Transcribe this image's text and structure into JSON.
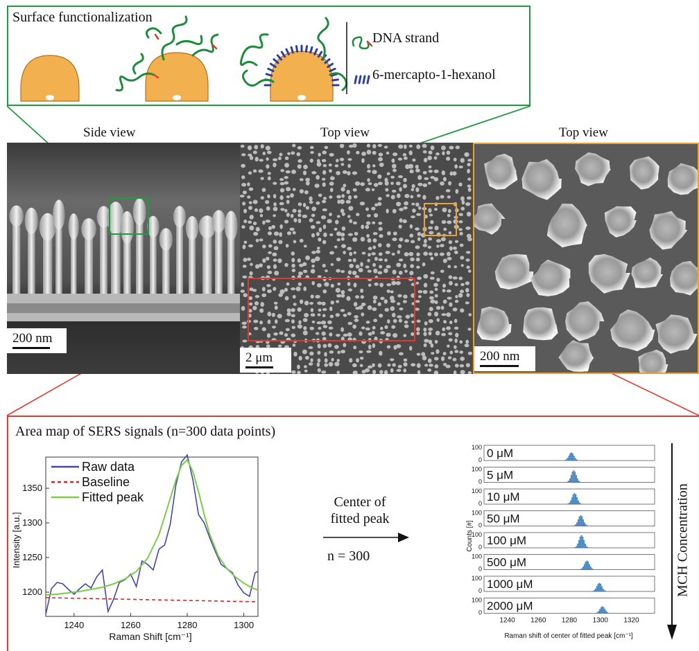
{
  "colors": {
    "green_frame": "#1f9a3f",
    "orange_frame": "#f0a030",
    "red_frame": "#e03a30",
    "gold_particle": "#f3b04e",
    "dna_green": "#1d8a3c",
    "mch_blue": "#2b3f9c",
    "raw_line": "#4444aa",
    "baseline": "#dd2222",
    "fit": "#7acc44",
    "hist_bar": "#5b9bd5"
  },
  "surface": {
    "title": "Surface functionalization",
    "legend_dna": "DNA strand",
    "legend_mch": "6-mercapto-1-hexanol",
    "legend_dna_icon": "dna-strand-icon",
    "legend_mch_icon": "mch-molecule-icon"
  },
  "panels": {
    "side_title": "Side view",
    "top_title": "Top view",
    "zoom_title": "Top view",
    "side_scale": "200 nm",
    "top_scale": "2 μm",
    "zoom_scale": "200 nm"
  },
  "sers": {
    "title": "Area map of SERS signals (n=300 data points)"
  },
  "arrow": {
    "line1": "Center of",
    "line2": "fitted peak",
    "n_label": "n = 300"
  },
  "mch_axis_label": "MCH Concentration",
  "chart_data": [
    {
      "type": "line",
      "xlabel": "Raman Shift [cm⁻¹]",
      "ylabel": "Intensity [a.u.]",
      "xlim": [
        1230,
        1305
      ],
      "ylim": [
        1165,
        1395
      ],
      "xticks": [
        1240,
        1260,
        1280,
        1300
      ],
      "yticks": [
        1200,
        1250,
        1300,
        1350
      ],
      "legend": [
        "Raw data",
        "Baseline",
        "Fitted peak"
      ],
      "legend_position": "top-left",
      "series": [
        {
          "name": "Raw data",
          "x": [
            1230,
            1232,
            1234,
            1236,
            1238,
            1240,
            1242,
            1244,
            1246,
            1248,
            1250,
            1252,
            1254,
            1256,
            1258,
            1260,
            1262,
            1264,
            1266,
            1268,
            1270,
            1272,
            1274,
            1276,
            1278,
            1280,
            1282,
            1284,
            1286,
            1288,
            1290,
            1292,
            1294,
            1296,
            1298,
            1300,
            1302,
            1304,
            1305
          ],
          "y": [
            1168,
            1205,
            1214,
            1212,
            1204,
            1197,
            1205,
            1212,
            1206,
            1222,
            1232,
            1172,
            1190,
            1214,
            1218,
            1226,
            1208,
            1245,
            1240,
            1232,
            1262,
            1268,
            1298,
            1355,
            1388,
            1398,
            1362,
            1312,
            1300,
            1278,
            1258,
            1240,
            1234,
            1228,
            1210,
            1199,
            1194,
            1228,
            1230
          ]
        },
        {
          "name": "Baseline",
          "x": [
            1230,
            1305
          ],
          "y": [
            1192,
            1186
          ]
        },
        {
          "name": "Fitted peak",
          "x": [
            1230,
            1234,
            1238,
            1242,
            1246,
            1250,
            1254,
            1258,
            1262,
            1266,
            1270,
            1273,
            1276,
            1278,
            1280,
            1282,
            1284,
            1286,
            1288,
            1291,
            1294,
            1297,
            1300,
            1303,
            1305
          ],
          "y": [
            1196,
            1197,
            1199,
            1201,
            1204,
            1207,
            1212,
            1219,
            1230,
            1249,
            1283,
            1322,
            1362,
            1383,
            1391,
            1374,
            1345,
            1312,
            1283,
            1252,
            1234,
            1222,
            1213,
            1206,
            1203
          ]
        }
      ]
    },
    {
      "type": "bar",
      "title": "",
      "xlabel": "Raman shift of center of fitted peak [cm⁻¹]",
      "ylabel": "Counts [#]",
      "xlim": [
        1225,
        1335
      ],
      "xticks": [
        1240,
        1260,
        1280,
        1300,
        1320
      ],
      "ylim": [
        0,
        100
      ],
      "yticks": [
        0,
        100
      ],
      "series": [
        {
          "name": "0 μM",
          "center": 1281,
          "peak": 52
        },
        {
          "name": "5 μM",
          "center": 1282.5,
          "peak": 78
        },
        {
          "name": "10 μM",
          "center": 1283,
          "peak": 72
        },
        {
          "name": "50 μM",
          "center": 1287,
          "peak": 70
        },
        {
          "name": "100 μM",
          "center": 1287.5,
          "peak": 82
        },
        {
          "name": "500 μM",
          "center": 1291,
          "peak": 58
        },
        {
          "name": "1000 μM",
          "center": 1299,
          "peak": 55
        },
        {
          "name": "2000 μM",
          "center": 1301,
          "peak": 44
        }
      ]
    }
  ]
}
